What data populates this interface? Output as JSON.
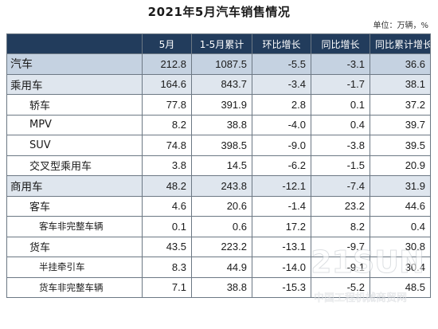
{
  "title": "2021年5月汽车销售情况",
  "unit": "单位：万辆，%",
  "columns": [
    "",
    "5月",
    "1-5月累计",
    "环比增长",
    "同比增长",
    "同比累计增长"
  ],
  "rows": [
    {
      "name": "汽车",
      "level": 0,
      "values": [
        "212.8",
        "1087.5",
        "-5.5",
        "-3.1",
        "36.6"
      ]
    },
    {
      "name": "乘用车",
      "level": 1,
      "values": [
        "164.6",
        "843.7",
        "-3.4",
        "-1.7",
        "38.1"
      ]
    },
    {
      "name": "轿车",
      "level": 2,
      "values": [
        "77.8",
        "391.9",
        "2.8",
        "0.1",
        "37.2"
      ]
    },
    {
      "name": "MPV",
      "level": 2,
      "values": [
        "8.2",
        "38.8",
        "-4.0",
        "0.4",
        "39.7"
      ]
    },
    {
      "name": "SUV",
      "level": 2,
      "values": [
        "74.8",
        "398.5",
        "-9.0",
        "-3.8",
        "39.5"
      ]
    },
    {
      "name": "交叉型乘用车",
      "level": 2,
      "values": [
        "3.8",
        "14.5",
        "-6.2",
        "-1.5",
        "20.9"
      ]
    },
    {
      "name": "商用车",
      "level": 1,
      "values": [
        "48.2",
        "243.8",
        "-12.1",
        "-7.4",
        "31.9"
      ]
    },
    {
      "name": "客车",
      "level": 2,
      "values": [
        "4.6",
        "20.6",
        "-1.4",
        "23.2",
        "44.6"
      ]
    },
    {
      "name": "客车非完整车辆",
      "level": 3,
      "values": [
        "0.1",
        "0.6",
        "17.2",
        "8.2",
        "0.4"
      ]
    },
    {
      "name": "货车",
      "level": 2,
      "values": [
        "43.5",
        "223.2",
        "-13.1",
        "-9.7",
        "30.8"
      ]
    },
    {
      "name": "半挂牵引车",
      "level": 3,
      "values": [
        "8.3",
        "44.9",
        "-14.0",
        "-9.1",
        "30.4"
      ]
    },
    {
      "name": "货车非完整车辆",
      "level": 3,
      "values": [
        "7.1",
        "38.8",
        "-15.3",
        "-5.2",
        "48.5"
      ]
    }
  ],
  "watermark": {
    "text": "21SUN",
    "subtext": "中国工程机械商贸网"
  }
}
